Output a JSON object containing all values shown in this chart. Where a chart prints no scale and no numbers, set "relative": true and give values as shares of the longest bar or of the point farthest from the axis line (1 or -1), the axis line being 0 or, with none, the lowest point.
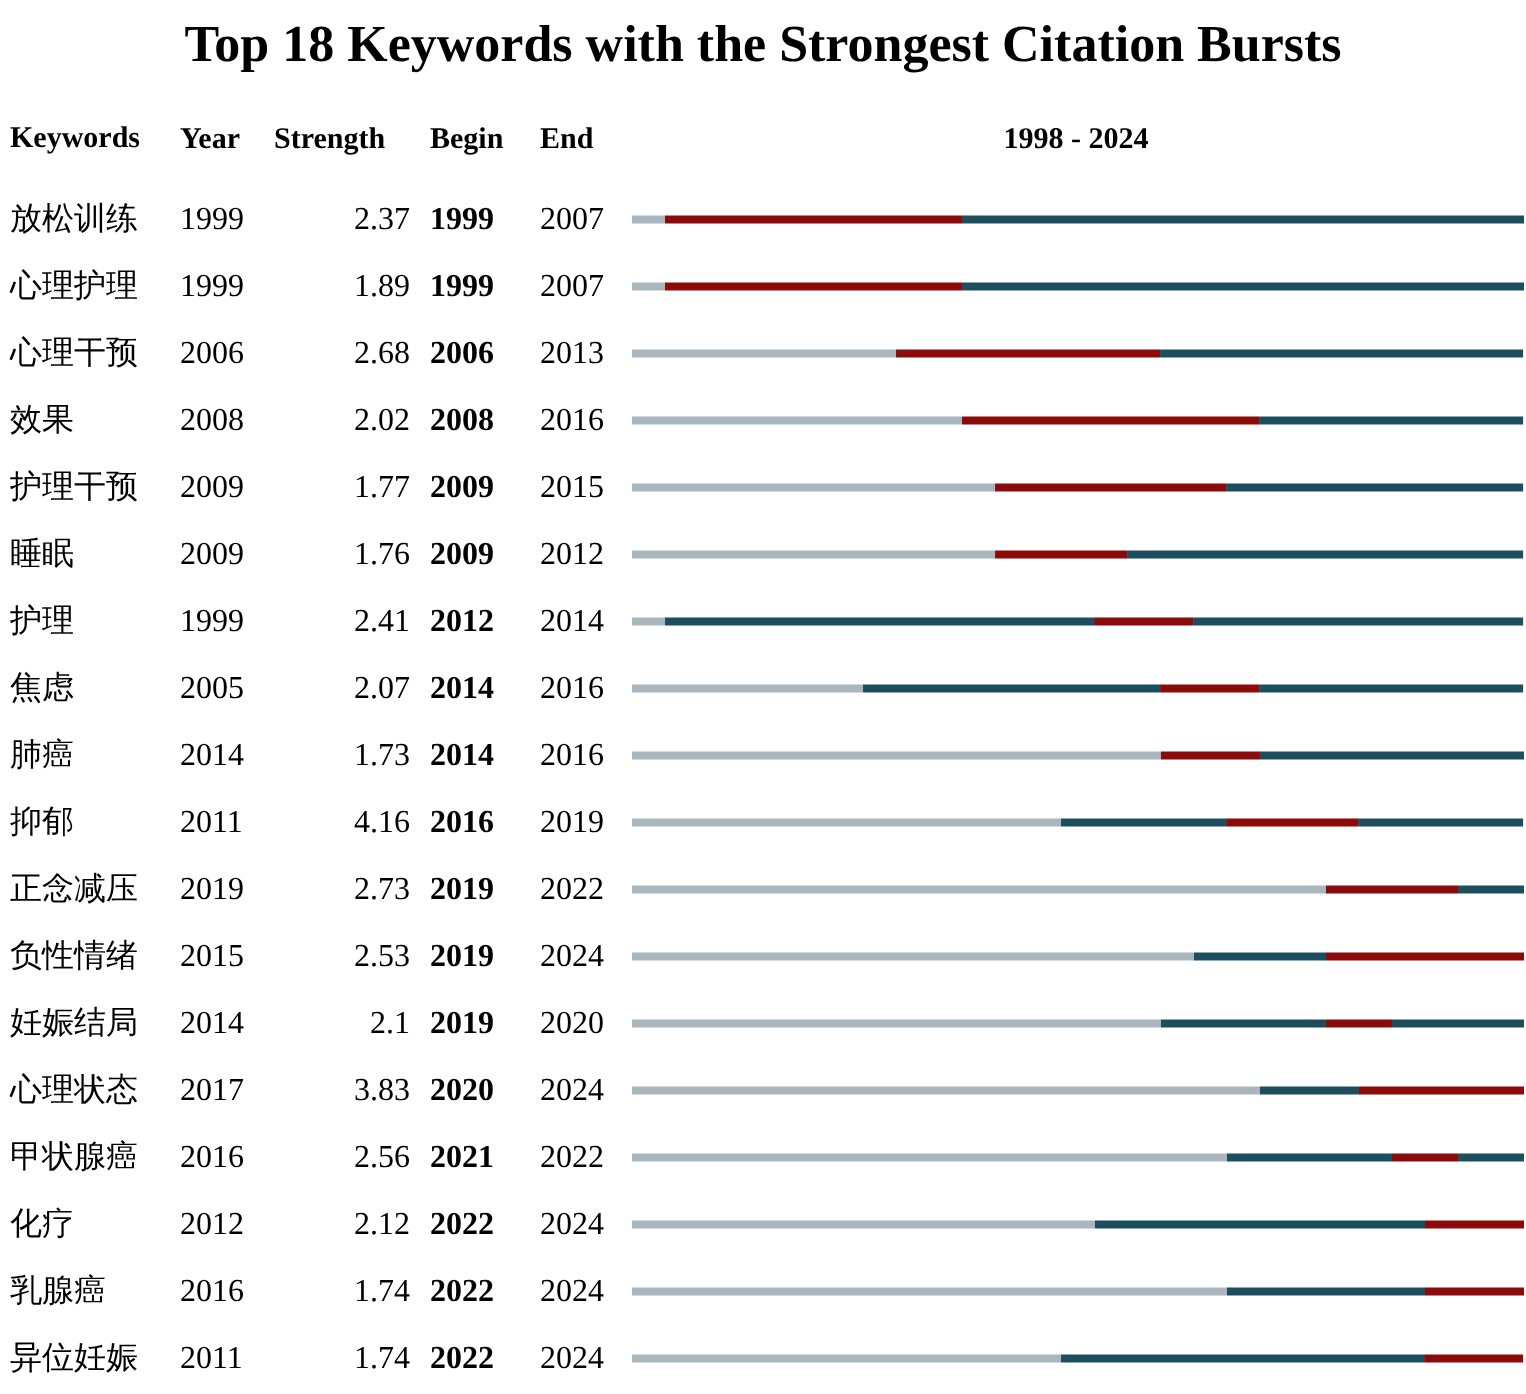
{
  "chart_data": {
    "type": "bar",
    "title": "Top 18 Keywords with the Strongest Citation Bursts",
    "ylabel": "Keywords",
    "orientation": "horizontal",
    "stacked": true,
    "relative": true,
    "tick_labels": "y",
    "categories": [
      "放松训练",
      "心理护理",
      "心理干预",
      "效果",
      "护理干预",
      "睡眠",
      "护理",
      "焦虑",
      "肺癌",
      "抑郁",
      "正念减压",
      "负性情绪",
      "妊娠结局",
      "心理状态",
      "甲状腺癌",
      "化疗",
      "乳腺癌",
      "异位妊娠"
    ],
    "series": [
      {
        "color": "#a9b6be",
        "values": [
          0.037,
          0.037,
          0.296,
          0.37,
          0.407,
          0.407,
          0.037,
          0.259,
          0.593,
          0.481,
          0.778,
          0.63,
          0.593,
          0.704,
          0.667,
          0.519,
          0.667,
          0.481
        ]
      },
      {
        "color": "#1d4e5e",
        "values": [
          0,
          0,
          0,
          0,
          0,
          0,
          0.481,
          0.333,
          0,
          0.185,
          0,
          0.148,
          0.185,
          0.111,
          0.185,
          0.37,
          0.222,
          0.407
        ]
      },
      {
        "color": "#8b0a0a",
        "values": [
          0.333,
          0.333,
          0.296,
          0.333,
          0.259,
          0.148,
          0.111,
          0.111,
          0.111,
          0.148,
          0.148,
          0.222,
          0.074,
          0.185,
          0.074,
          0.111,
          0.111,
          0.111
        ]
      },
      {
        "color": "#1d4e5e",
        "values": [
          0.63,
          0.63,
          0.407,
          0.296,
          0.333,
          0.444,
          0.37,
          0.296,
          0.296,
          0.185,
          0.074,
          0,
          0.148,
          0,
          0.074,
          0,
          0,
          0
        ]
      }
    ],
    "annotations": [
      "Year",
      "Strength",
      "Begin",
      "End",
      "1998 - 2024",
      "1999",
      "2.37",
      "1999",
      "2007",
      "1999",
      "1.89",
      "1999",
      "2007",
      "2006",
      "2.68",
      "2006",
      "2013",
      "2008",
      "2.02",
      "2008",
      "2016",
      "2009",
      "1.77",
      "2009",
      "2015",
      "2009",
      "1.76",
      "2009",
      "2012",
      "1999",
      "2.41",
      "2012",
      "2014",
      "2005",
      "2.07",
      "2014",
      "2016",
      "2014",
      "1.73",
      "2014",
      "2016",
      "2011",
      "4.16",
      "2016",
      "2019",
      "2019",
      "2.73",
      "2019",
      "2022",
      "2015",
      "2.53",
      "2019",
      "2024",
      "2014",
      "2.1",
      "2019",
      "2020",
      "2017",
      "3.83",
      "2020",
      "2024",
      "2016",
      "2.56",
      "2021",
      "2022",
      "2012",
      "2.12",
      "2022",
      "2024",
      "2016",
      "1.74",
      "2022",
      "2024",
      "2011",
      "1.74",
      "2022",
      "2024"
    ]
  }
}
